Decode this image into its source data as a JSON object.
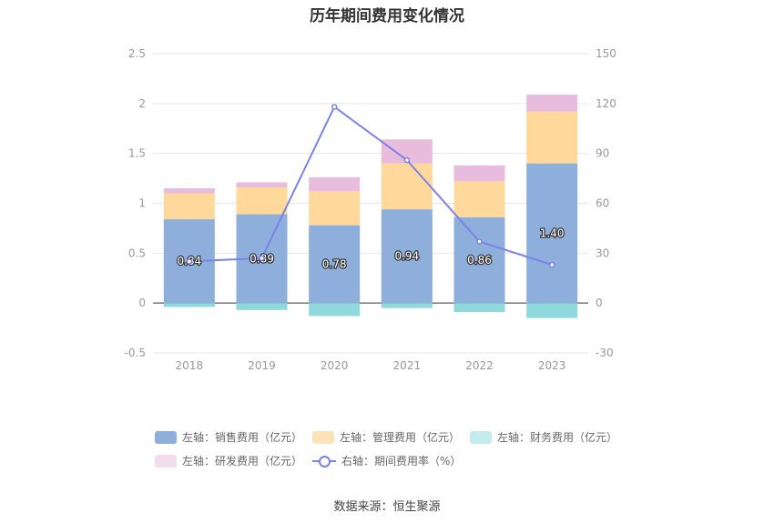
{
  "chart_data": {
    "type": "bar",
    "title": "历年期间费用变化情况",
    "categories": [
      "2018",
      "2019",
      "2020",
      "2021",
      "2022",
      "2023"
    ],
    "stacked": true,
    "series": [
      {
        "name": "左轴：销售费用（亿元）",
        "axis": "left",
        "kind": "bar",
        "color": "#8eaedc",
        "values": [
          0.84,
          0.89,
          0.78,
          0.94,
          0.86,
          1.4
        ],
        "labels": [
          "0.84",
          "0.89",
          "0.78",
          "0.94",
          "0.86",
          "1.40"
        ]
      },
      {
        "name": "左轴：管理费用（亿元）",
        "axis": "left",
        "kind": "bar",
        "color": "#fed99b",
        "values": [
          0.26,
          0.27,
          0.34,
          0.46,
          0.36,
          0.52
        ]
      },
      {
        "name": "左轴：财务费用（亿元）",
        "axis": "left",
        "kind": "bar",
        "color": "#8fd8dc",
        "values": [
          -0.04,
          -0.07,
          -0.13,
          -0.05,
          -0.09,
          -0.15
        ]
      },
      {
        "name": "左轴：研发费用（亿元）",
        "axis": "left",
        "kind": "bar",
        "color": "#e8bcdc",
        "values": [
          0.05,
          0.05,
          0.14,
          0.24,
          0.16,
          0.17
        ]
      },
      {
        "name": "右轴：期间费用率（%）",
        "axis": "right",
        "kind": "line",
        "color": "#7b83e8",
        "values": [
          25,
          27,
          118,
          86,
          37,
          23
        ]
      }
    ],
    "left_axis": {
      "min": -0.5,
      "max": 2.5,
      "ticks": [
        "-0.5",
        "0",
        "0.5",
        "1",
        "1.5",
        "2",
        "2.5"
      ]
    },
    "right_axis": {
      "min": -30,
      "max": 150,
      "ticks": [
        "-30",
        "0",
        "30",
        "60",
        "90",
        "120",
        "150"
      ]
    },
    "grid": true,
    "legend_position": "bottom"
  },
  "legend": [
    {
      "label": "左轴：销售费用（亿元）",
      "color": "#8eaedc",
      "kind": "bar"
    },
    {
      "label": "左轴：管理费用（亿元）",
      "color": "#fde3b8",
      "kind": "bar"
    },
    {
      "label": "左轴：财务费用（亿元）",
      "color": "#c2ecee",
      "kind": "bar"
    },
    {
      "label": "左轴：研发费用（亿元）",
      "color": "#f3dcec",
      "kind": "bar"
    },
    {
      "label": "右轴：期间费用率（%）",
      "color": "#7b83e8",
      "kind": "line"
    }
  ],
  "source": "数据来源：恒生聚源"
}
